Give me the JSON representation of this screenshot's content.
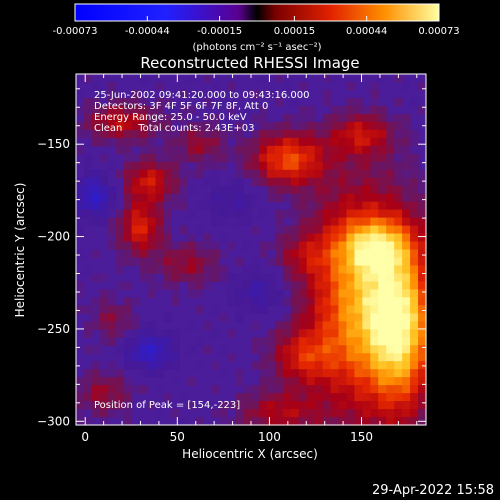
{
  "colorbar": {
    "tick_labels": [
      "-0.00073",
      "-0.00044",
      "-0.00015",
      "0.00015",
      "0.00044",
      "0.00073"
    ],
    "unit_label": "(photons cm⁻² s⁻¹ asec⁻²)",
    "range": [
      -0.00073,
      0.00073
    ]
  },
  "chart_data": {
    "type": "heatmap",
    "title": "Reconstructed RHESSI Image",
    "xlabel": "Heliocentric X (arcsec)",
    "ylabel": "Heliocentric Y (arcsec)",
    "xlim": [
      -5,
      185
    ],
    "ylim": [
      -302,
      -112
    ],
    "x_ticks": [
      0,
      50,
      100,
      150
    ],
    "y_ticks": [
      -150,
      -200,
      -250,
      -300
    ],
    "x_tick_labels": [
      "0",
      "50",
      "100",
      "150"
    ],
    "y_tick_labels": [
      "-150",
      "-200",
      "-250",
      "-300"
    ],
    "peak": [
      154,
      -223
    ],
    "hotspots": [
      {
        "x": 20,
        "y": -138,
        "level": 0.35,
        "sx": 14,
        "sy": 7
      },
      {
        "x": 35,
        "y": -170,
        "level": 0.4,
        "sx": 10,
        "sy": 8
      },
      {
        "x": 30,
        "y": -195,
        "level": 0.45,
        "sx": 8,
        "sy": 10
      },
      {
        "x": 62,
        "y": -150,
        "level": 0.25,
        "sx": 9,
        "sy": 7
      },
      {
        "x": 55,
        "y": -215,
        "level": 0.25,
        "sx": 12,
        "sy": 8
      },
      {
        "x": 110,
        "y": -158,
        "level": 0.55,
        "sx": 14,
        "sy": 10
      },
      {
        "x": 118,
        "y": -210,
        "level": 0.2,
        "sx": 10,
        "sy": 8
      },
      {
        "x": 150,
        "y": -145,
        "level": 0.35,
        "sx": 12,
        "sy": 8
      },
      {
        "x": 150,
        "y": -235,
        "level": 0.75,
        "sx": 20,
        "sy": 40
      },
      {
        "x": 172,
        "y": -250,
        "level": 0.7,
        "sx": 12,
        "sy": 30
      },
      {
        "x": 158,
        "y": -205,
        "level": 0.45,
        "sx": 14,
        "sy": 10
      },
      {
        "x": 118,
        "y": -265,
        "level": 0.35,
        "sx": 12,
        "sy": 10
      },
      {
        "x": 105,
        "y": -295,
        "level": 0.3,
        "sx": 16,
        "sy": 8
      },
      {
        "x": 10,
        "y": -285,
        "level": 0.25,
        "sx": 10,
        "sy": 8
      },
      {
        "x": 15,
        "y": -245,
        "level": 0.2,
        "sx": 8,
        "sy": 8
      }
    ],
    "coldspots": [
      {
        "x": 5,
        "y": -178,
        "level": -0.35,
        "sx": 8,
        "sy": 8
      },
      {
        "x": 35,
        "y": -262,
        "level": -0.35,
        "sx": 9,
        "sy": 7
      },
      {
        "x": 95,
        "y": -230,
        "level": -0.2,
        "sx": 10,
        "sy": 8
      },
      {
        "x": 80,
        "y": -180,
        "level": -0.15,
        "sx": 10,
        "sy": 8
      }
    ]
  },
  "info": {
    "line1": "25-Jun-2002 09:41:20.000 to 09:43:16.000",
    "line2": "Detectors: 3F 4F 5F 6F 7F 8F, Att 0",
    "line3": "Energy Range: 25.0 - 50.0 keV",
    "line4": "Clean     Total counts: 2.43E+03",
    "peak_text": "Position of Peak = [154,-223]"
  },
  "footer": {
    "timestamp": "29-Apr-2022 15:58"
  }
}
